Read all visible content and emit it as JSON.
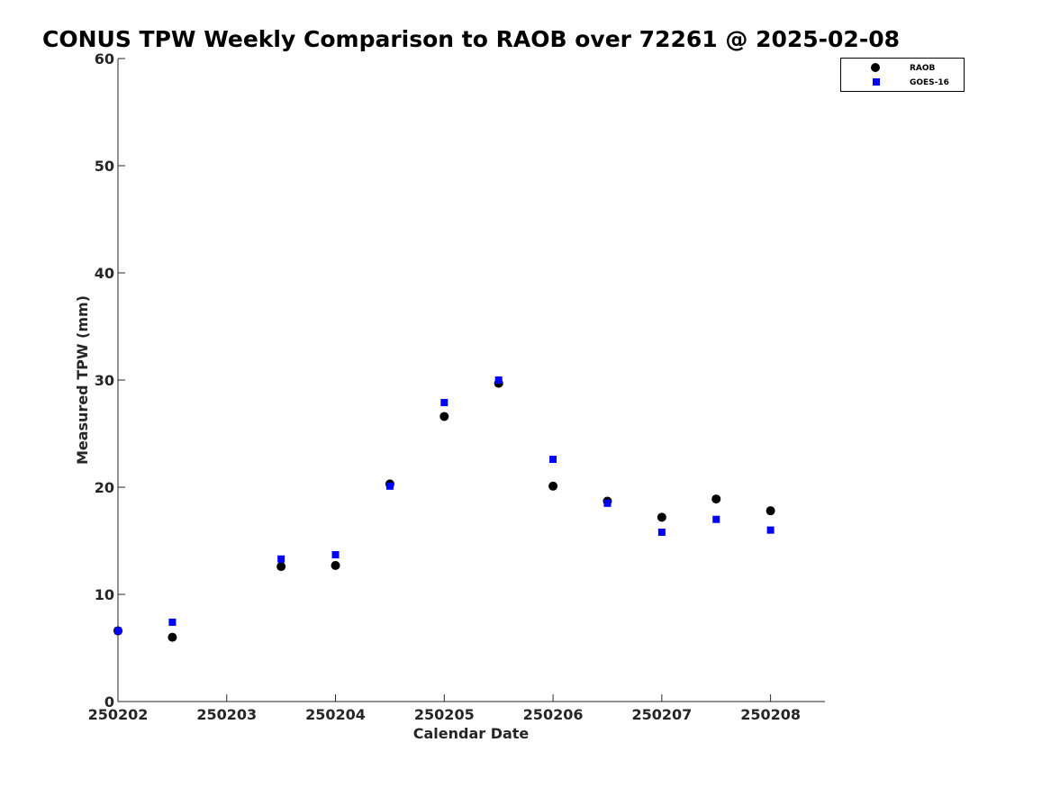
{
  "chart_data": {
    "type": "scatter",
    "title": "CONUS TPW Weekly Comparison to RAOB over 72261 @ 2025-02-08",
    "xlabel": "Calendar Date",
    "ylabel": "Measured TPW (mm)",
    "x_ticks": [
      "250202",
      "250203",
      "250204",
      "250205",
      "250206",
      "250207",
      "250208"
    ],
    "y_ticks": [
      "0",
      "10",
      "20",
      "30",
      "40",
      "50",
      "60"
    ],
    "xlim": [
      0,
      6.5
    ],
    "ylim": [
      0,
      60
    ],
    "grid": false,
    "legend_position": "top-right",
    "x": [
      0,
      0.5,
      1.5,
      2,
      2.5,
      3,
      3.5,
      4,
      4.5,
      5,
      5.5,
      6
    ],
    "series": [
      {
        "name": "RAOB",
        "marker": "circle",
        "color": "#000000",
        "values": [
          6.6,
          6.0,
          12.6,
          12.7,
          20.3,
          26.6,
          29.7,
          20.1,
          18.7,
          17.2,
          18.9,
          17.8
        ]
      },
      {
        "name": "GOES-16",
        "marker": "square",
        "color": "#0000ff",
        "values": [
          6.6,
          7.4,
          13.3,
          13.7,
          20.1,
          27.9,
          30.0,
          22.6,
          18.5,
          15.8,
          17.0,
          16.0
        ]
      }
    ]
  }
}
